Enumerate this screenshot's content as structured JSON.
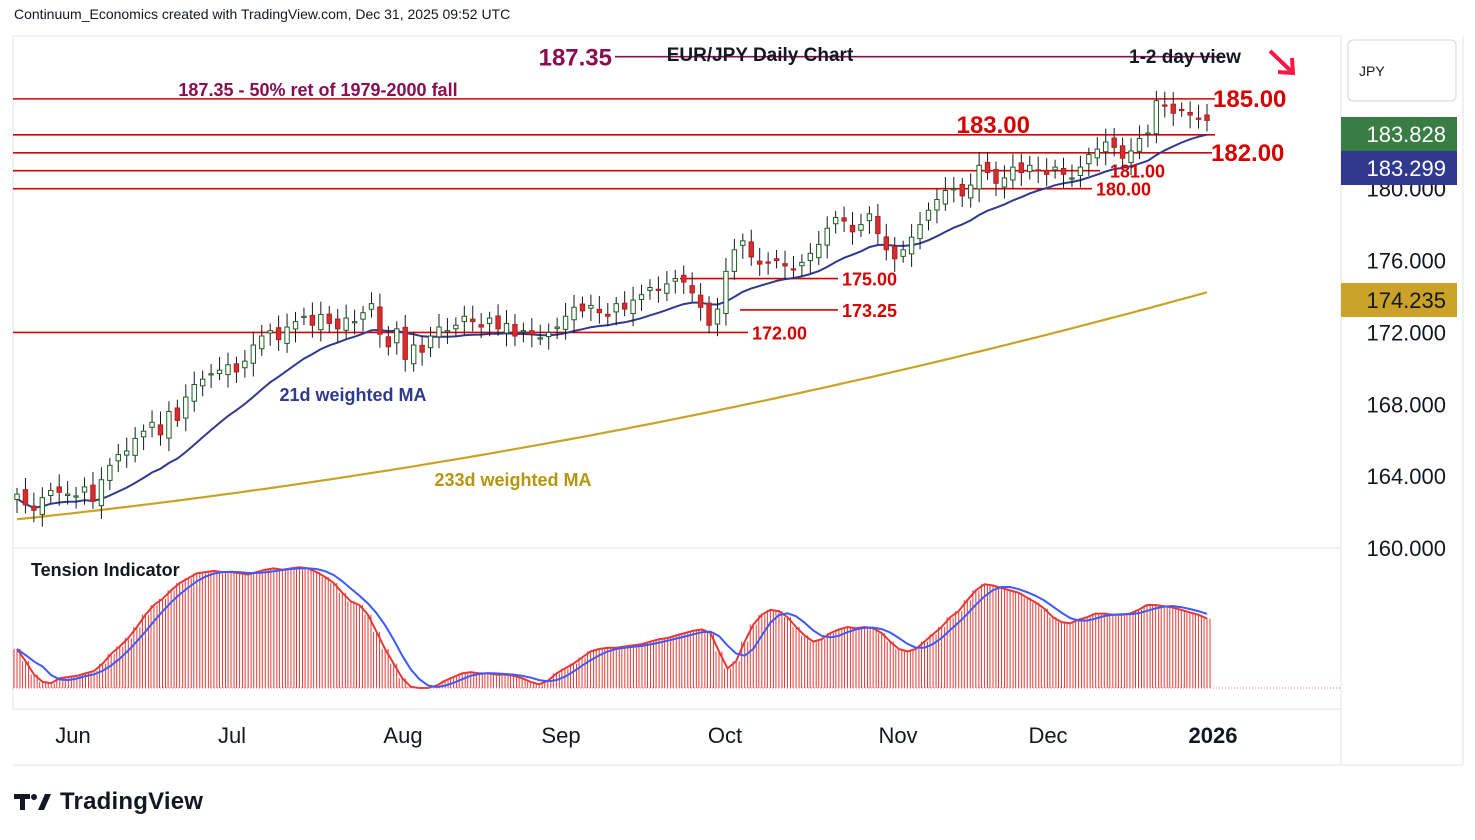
{
  "header": "Continuum_Economics created with TradingView.com, Dec 31, 2025 09:52 UTC",
  "brand": "TradingView",
  "chart_data": {
    "type": "candlestick",
    "title": "EUR/JPY Daily Chart",
    "view_label": "1-2 day view",
    "currency": "JPY",
    "ylim": [
      160,
      188.5
    ],
    "y_ticks": [
      "180.000",
      "176.000",
      "172.000",
      "168.000",
      "164.000",
      "160.000"
    ],
    "x_ticks": [
      "Jun",
      "Jul",
      "Aug",
      "Sep",
      "Oct",
      "Nov",
      "Dec",
      "2026"
    ],
    "price_labels": [
      {
        "value": "183.828",
        "color": "#3a7d44"
      },
      {
        "value": "183.299",
        "color": "#2f3a8f"
      },
      {
        "value": "174.235",
        "color": "#c9a227"
      }
    ],
    "levels": [
      {
        "text": "187.35",
        "value": 187.35,
        "color": "#880e4f"
      },
      {
        "text": "185.00",
        "value": 185.0,
        "color": "#d50000"
      },
      {
        "text": "183.00",
        "value": 183.0,
        "color": "#d50000"
      },
      {
        "text": "182.00",
        "value": 182.0,
        "color": "#d50000"
      },
      {
        "text": "181.00",
        "value": 181.0,
        "color": "#d50000"
      },
      {
        "text": "180.00",
        "value": 180.0,
        "color": "#d50000"
      },
      {
        "text": "175.00",
        "value": 175.0,
        "color": "#d50000"
      },
      {
        "text": "173.25",
        "value": 173.25,
        "color": "#d50000"
      },
      {
        "text": "172.00",
        "value": 172.0,
        "color": "#d50000"
      }
    ],
    "annotation": "187.35 - 50% ret of 1979-2000 fall",
    "ma_labels": {
      "ma21": "21d weighted MA",
      "ma233": "233d weighted MA"
    },
    "tension_label": "Tension Indicator",
    "candle_closes": [
      163.0,
      162.4,
      162.1,
      162.8,
      163.2,
      163.1,
      163.0,
      162.9,
      163.4,
      162.6,
      163.8,
      164.6,
      165.2,
      165.4,
      166.1,
      166.5,
      167.0,
      166.3,
      167.6,
      167.1,
      168.4,
      169.1,
      169.4,
      169.7,
      169.9,
      170.2,
      169.8,
      170.4,
      171.3,
      171.8,
      172.1,
      171.6,
      172.3,
      172.6,
      172.9,
      172.4,
      173.0,
      172.5,
      172.2,
      172.8,
      172.6,
      173.1,
      173.6,
      171.9,
      171.2,
      172.2,
      170.5,
      171.3,
      170.9,
      171.8,
      172.3,
      172.1,
      172.4,
      172.9,
      172.6,
      172.3,
      172.8,
      172.2,
      172.5,
      171.8,
      172.1,
      171.9,
      171.7,
      172.0,
      172.3,
      172.9,
      173.4,
      173.2,
      173.5,
      173.1,
      172.9,
      173.6,
      173.3,
      173.8,
      174.1,
      174.5,
      174.4,
      174.7,
      175.0,
      174.8,
      174.2,
      173.4,
      172.4,
      173.3,
      175.4,
      176.6,
      177.1,
      176.2,
      175.8,
      175.9,
      176.0,
      175.7,
      175.5,
      175.9,
      176.4,
      176.9,
      177.8,
      178.4,
      178.2,
      177.6,
      178.0,
      178.6,
      177.5,
      176.6,
      176.1,
      176.6,
      177.3,
      178.0,
      178.8,
      179.4,
      179.9,
      180.0,
      179.6,
      180.2,
      181.3,
      180.9,
      180.3,
      180.6,
      181.2,
      180.9,
      181.3,
      181.0,
      180.8,
      181.2,
      180.8,
      180.6,
      181.2,
      181.9,
      182.2,
      182.6,
      182.3,
      181.7,
      182.1,
      182.8,
      183.1,
      184.9,
      184.6,
      184.2,
      184.4,
      184.1,
      183.9,
      183.8
    ],
    "tension_values": [
      0.32,
      0.22,
      0.11,
      0.05,
      0.04,
      0.08,
      0.09,
      0.1,
      0.12,
      0.14,
      0.2,
      0.28,
      0.34,
      0.41,
      0.5,
      0.6,
      0.68,
      0.73,
      0.8,
      0.86,
      0.9,
      0.94,
      0.95,
      0.96,
      0.95,
      0.95,
      0.94,
      0.93,
      0.95,
      0.97,
      0.98,
      0.97,
      0.98,
      0.99,
      0.98,
      0.95,
      0.91,
      0.86,
      0.78,
      0.71,
      0.68,
      0.6,
      0.46,
      0.32,
      0.2,
      0.08,
      0.01,
      0.0,
      0.0,
      0.02,
      0.06,
      0.09,
      0.12,
      0.13,
      0.12,
      0.12,
      0.11,
      0.11,
      0.1,
      0.08,
      0.05,
      0.03,
      0.06,
      0.12,
      0.16,
      0.2,
      0.25,
      0.3,
      0.32,
      0.33,
      0.33,
      0.34,
      0.35,
      0.36,
      0.38,
      0.4,
      0.41,
      0.43,
      0.45,
      0.47,
      0.48,
      0.45,
      0.3,
      0.16,
      0.22,
      0.38,
      0.52,
      0.6,
      0.64,
      0.63,
      0.58,
      0.5,
      0.43,
      0.38,
      0.4,
      0.45,
      0.48,
      0.5,
      0.49,
      0.5,
      0.49,
      0.45,
      0.38,
      0.32,
      0.3,
      0.32,
      0.38,
      0.44,
      0.5,
      0.58,
      0.63,
      0.72,
      0.8,
      0.85,
      0.84,
      0.82,
      0.8,
      0.78,
      0.74,
      0.7,
      0.65,
      0.58,
      0.54,
      0.53,
      0.56,
      0.58,
      0.61,
      0.61,
      0.6,
      0.6,
      0.61,
      0.64,
      0.68,
      0.68,
      0.67,
      0.66,
      0.64,
      0.62,
      0.6,
      0.57
    ]
  }
}
